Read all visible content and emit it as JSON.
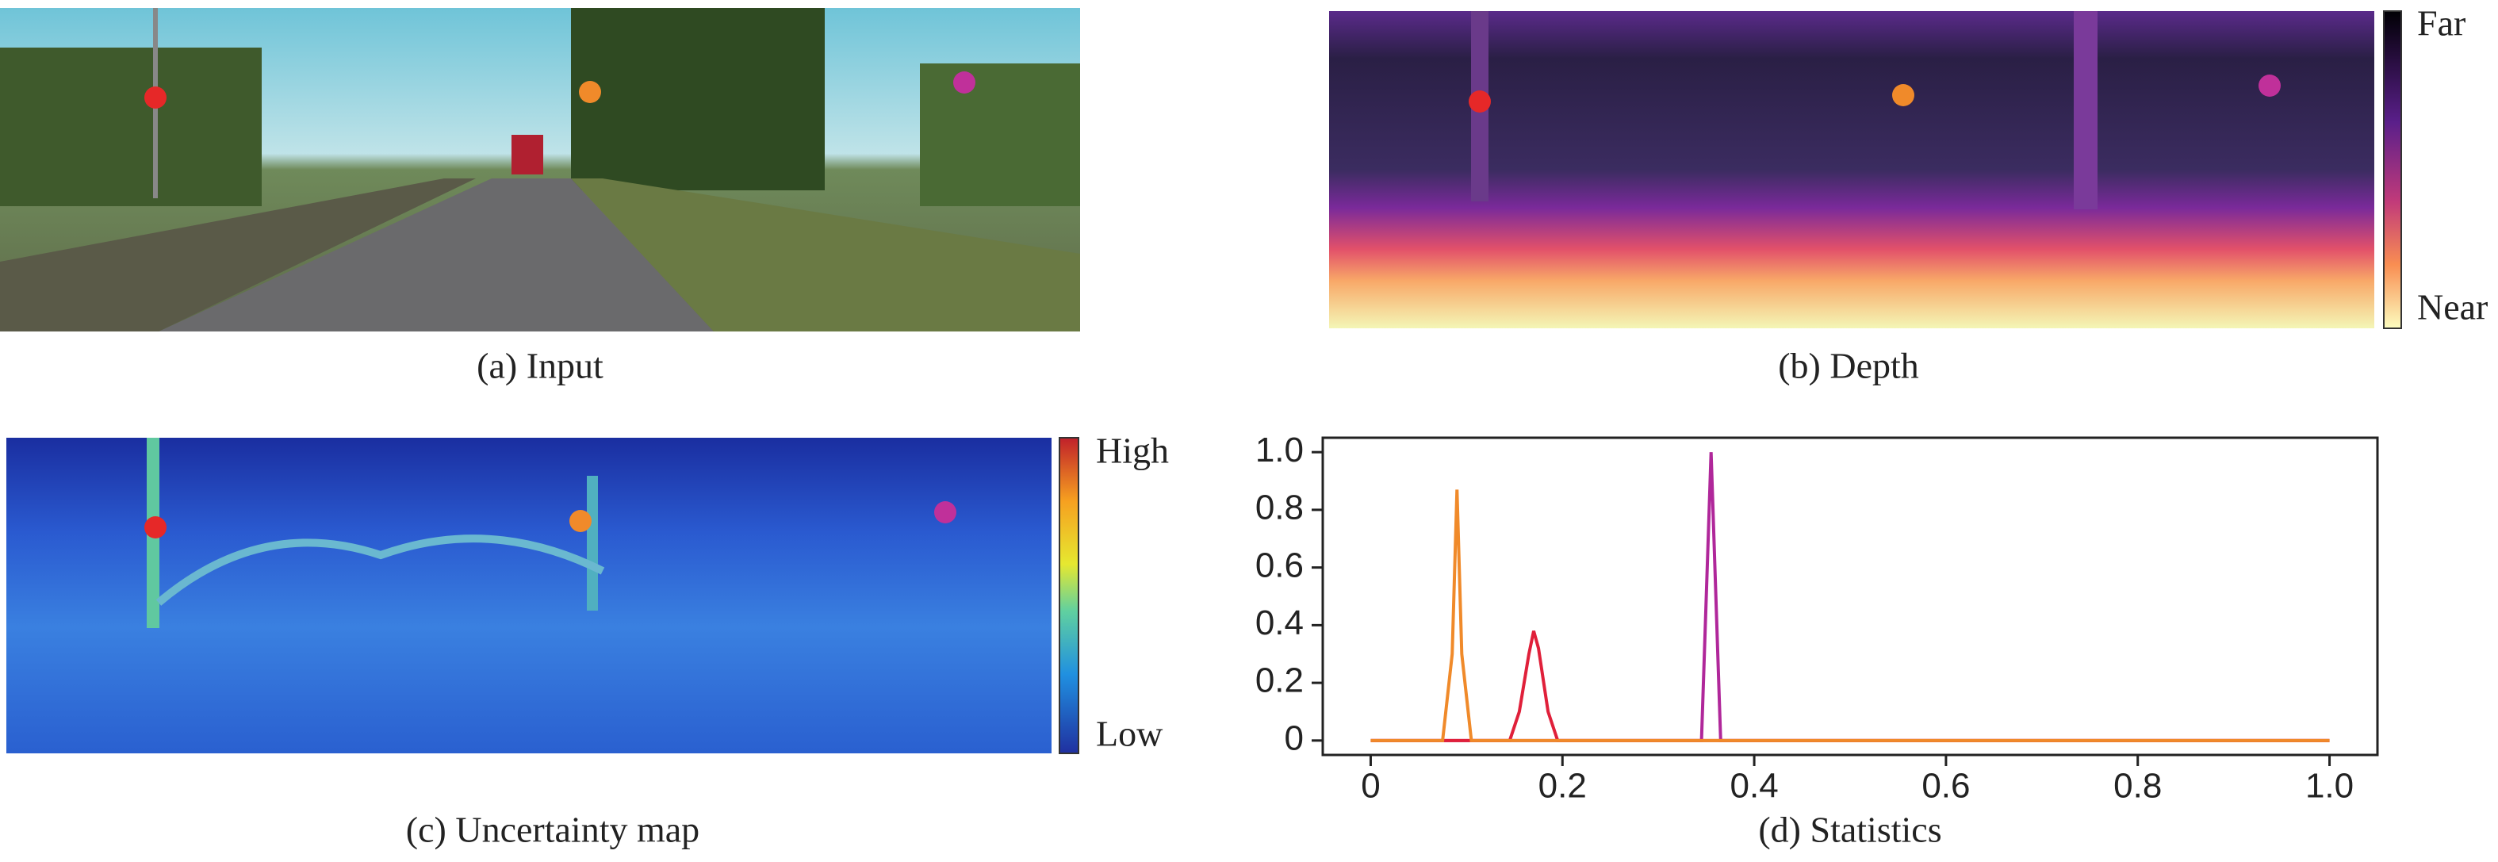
{
  "panels": [
    {
      "caption": "(a) Input"
    },
    {
      "caption": "(b) Depth",
      "colorbar": [
        "Far",
        "Near"
      ]
    },
    {
      "caption": "(c) Uncertainty map",
      "colorbar": [
        "High",
        "Low"
      ]
    },
    {
      "caption": "(d) Statistics"
    }
  ],
  "chart_data": {
    "type": "line",
    "x": [
      0,
      0.075,
      0.085,
      0.09,
      0.095,
      0.105,
      0.145,
      0.155,
      0.165,
      0.17,
      0.175,
      0.185,
      0.195,
      0.345,
      0.355,
      0.365,
      1
    ],
    "series": [
      {
        "color": "#b0279a",
        "values": [
          0,
          0,
          0,
          0,
          0,
          0,
          0,
          0,
          0,
          0,
          0,
          0,
          0,
          0,
          1,
          0,
          0
        ]
      },
      {
        "color": "#e0203a",
        "values": [
          0,
          0,
          0,
          0,
          0,
          0,
          0,
          0.1,
          0.3,
          0.38,
          0.32,
          0.1,
          0,
          0,
          0,
          0,
          0
        ]
      },
      {
        "color": "#f08a2a",
        "values": [
          0,
          0,
          0.3,
          0.87,
          0.3,
          0,
          0,
          0,
          0,
          0,
          0,
          0,
          0,
          0,
          0,
          0,
          0
        ]
      }
    ],
    "xlim": [
      -0.05,
      1.05
    ],
    "ylim": [
      -0.05,
      1.05
    ],
    "xticks": [
      0,
      0.2,
      0.4,
      0.6,
      0.8,
      {
        "value": 1,
        "label": "1.0"
      }
    ],
    "yticks": [
      0,
      0.2,
      0.4,
      0.6,
      0.8,
      {
        "value": 1,
        "label": "1.0"
      }
    ]
  }
}
